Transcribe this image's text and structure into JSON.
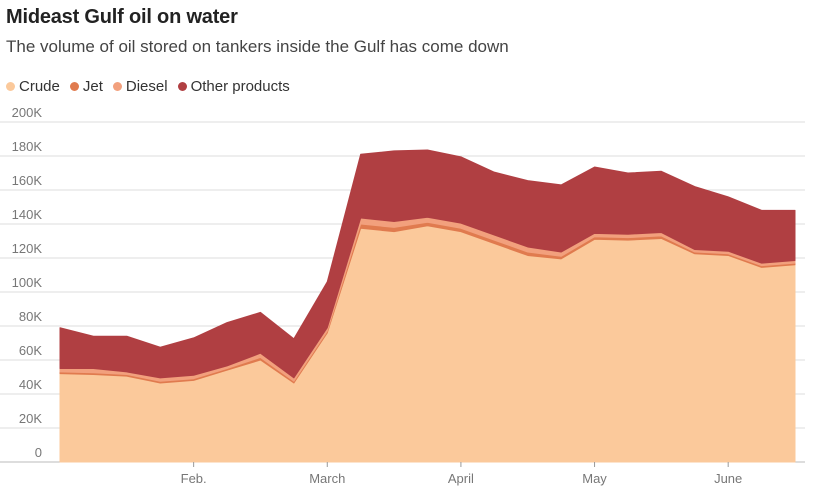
{
  "chart_data": {
    "type": "area",
    "stacked": true,
    "title": "Mideast Gulf oil on water",
    "subtitle": "The volume of oil stored on tankers inside the Gulf has come down",
    "xlabel": "",
    "ylabel": "",
    "ylim": [
      0,
      200000
    ],
    "yticks": [
      0,
      20000,
      40000,
      60000,
      80000,
      100000,
      120000,
      140000,
      160000,
      180000,
      200000
    ],
    "ytick_labels": [
      "0",
      "20K",
      "40K",
      "60K",
      "80K",
      "100K",
      "120K",
      "140K",
      "160K",
      "180K",
      "200K"
    ],
    "x_tick_labels": [
      {
        "label": "Feb.",
        "index": 4
      },
      {
        "label": "March",
        "index": 8
      },
      {
        "label": "April",
        "index": 12
      },
      {
        "label": "May",
        "index": 16
      },
      {
        "label": "June",
        "index": 20
      }
    ],
    "legend_position": "top-left",
    "grid": true,
    "series": [
      {
        "name": "Crude",
        "color": "#fbc99b",
        "values": [
          52000,
          51500,
          50500,
          46500,
          48000,
          54000,
          60000,
          46500,
          76000,
          137500,
          135500,
          139000,
          135500,
          128500,
          121500,
          119500,
          131000,
          130500,
          131500,
          122500,
          121500,
          114500,
          116000
        ]
      },
      {
        "name": "Jet",
        "color": "#e07b4f",
        "values": [
          1000,
          1000,
          1000,
          1000,
          1000,
          1000,
          1500,
          1000,
          1000,
          2500,
          2500,
          2000,
          2000,
          2000,
          2000,
          1500,
          1500,
          1500,
          1500,
          1000,
          1000,
          1000,
          1000
        ]
      },
      {
        "name": "Diesel",
        "color": "#f2a07d",
        "values": [
          2000,
          2500,
          1500,
          2000,
          2000,
          1500,
          2500,
          2000,
          2000,
          3500,
          3500,
          3000,
          3000,
          3000,
          3000,
          2500,
          2000,
          2000,
          2000,
          1500,
          1500,
          1500,
          1500
        ]
      },
      {
        "name": "Other products",
        "color": "#b03f42",
        "values": [
          24000,
          19000,
          21000,
          18000,
          22000,
          25500,
          24000,
          23000,
          27000,
          37500,
          41500,
          39500,
          39000,
          37000,
          39000,
          39500,
          39000,
          36000,
          36000,
          37000,
          32000,
          31000,
          29500
        ]
      }
    ]
  }
}
